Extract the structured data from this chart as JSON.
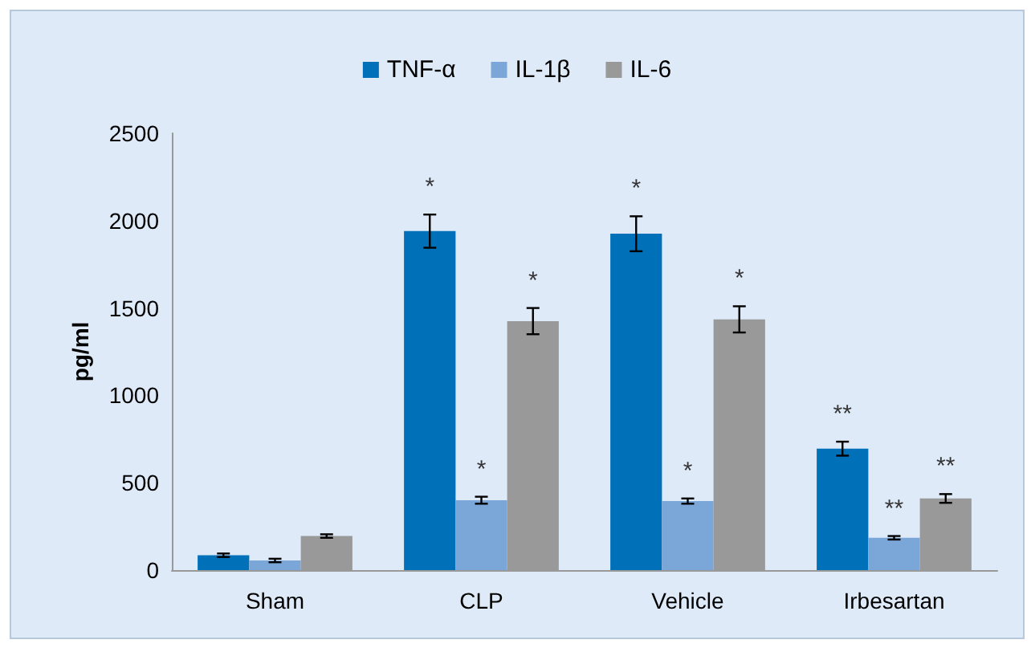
{
  "chart_data": {
    "type": "bar",
    "ylabel": "pg/ml",
    "categories": [
      "Sham",
      "CLP",
      "Vehicle",
      "Irbesartan"
    ],
    "series": [
      {
        "name": "TNF-α",
        "color": "#0070b8",
        "values": [
          85,
          1940,
          1925,
          695
        ],
        "errors": [
          10,
          95,
          100,
          40
        ],
        "value_labels": [
          null,
          "*",
          "*",
          "**"
        ]
      },
      {
        "name": "IL-1β",
        "color": "#7aa6d8",
        "values": [
          55,
          400,
          395,
          185
        ],
        "errors": [
          10,
          20,
          15,
          10
        ],
        "value_labels": [
          null,
          "*",
          "*",
          "**"
        ]
      },
      {
        "name": "IL-6",
        "color": "#999999",
        "values": [
          195,
          1425,
          1435,
          410
        ],
        "errors": [
          10,
          75,
          75,
          25
        ],
        "value_labels": [
          null,
          "*",
          "*",
          "**"
        ]
      }
    ],
    "ylim": [
      0,
      2500
    ],
    "yticks": [
      0,
      500,
      1000,
      1500,
      2000,
      2500
    ],
    "grid": false,
    "legend": "top"
  }
}
